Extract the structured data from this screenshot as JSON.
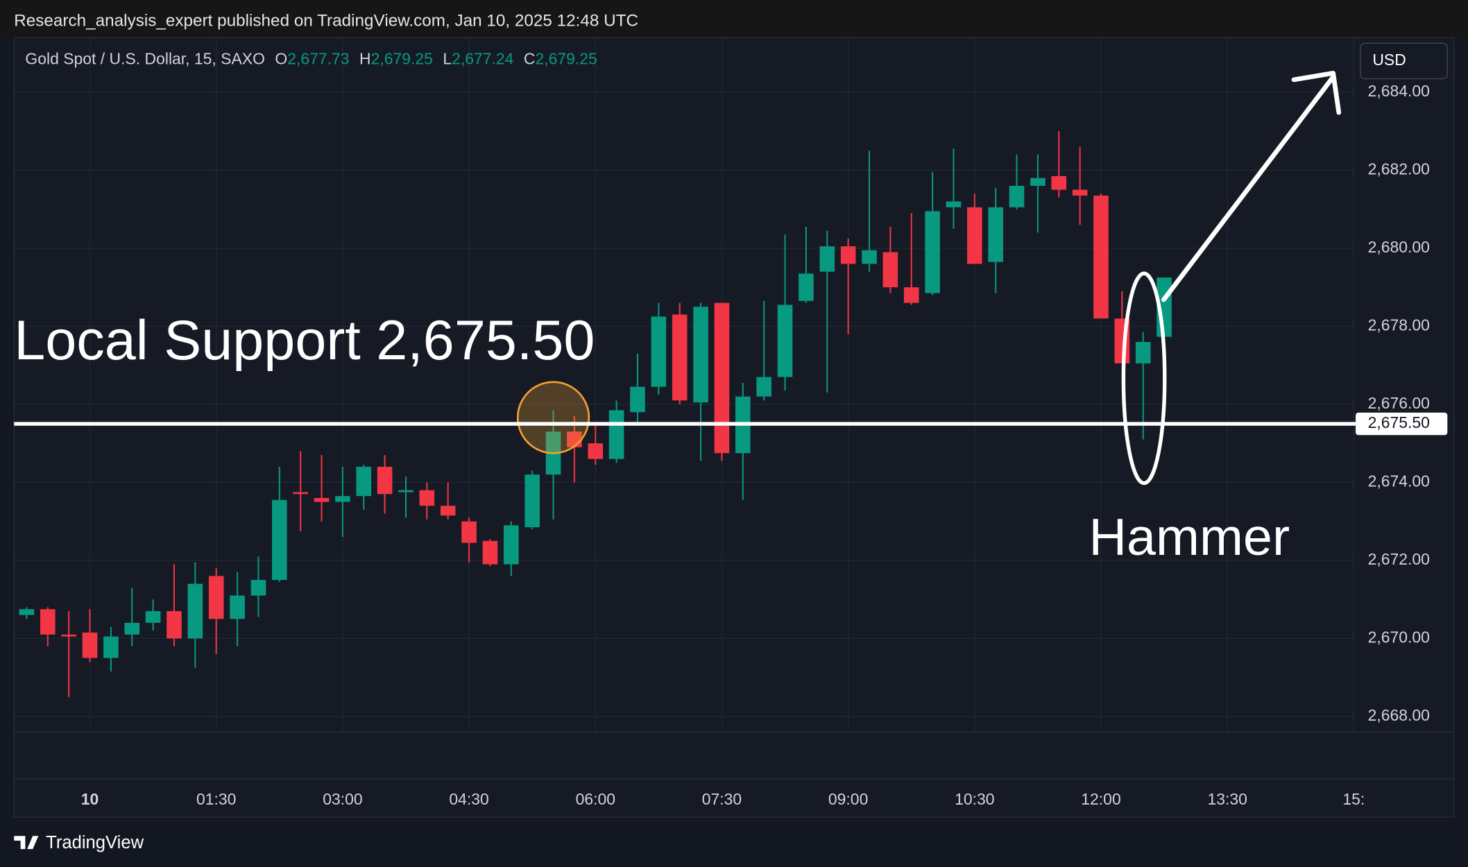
{
  "page": {
    "publisher": "Research_analysis_expert published on TradingView.com, Jan 10, 2025 12:48 UTC",
    "brand": "TradingView",
    "currency": "USD",
    "header": {
      "symbol": "Gold Spot / U.S. Dollar, 15, SAXO",
      "ohlc_letters": [
        "O",
        "H",
        "L",
        "C"
      ],
      "ohlc_values": [
        "2,677.73",
        "2,679.25",
        "2,677.24",
        "2,679.25"
      ]
    }
  },
  "chart_data": {
    "type": "candlestick",
    "up_color": "#089981",
    "down_color": "#f23645",
    "grid": true,
    "x": [
      -45,
      -30,
      -15,
      0,
      15,
      30,
      45,
      60,
      75,
      90,
      105,
      120,
      135,
      150,
      165,
      180,
      195,
      210,
      225,
      240,
      255,
      270,
      285,
      300,
      315,
      330,
      345,
      360,
      375,
      390,
      405,
      420,
      435,
      450,
      465,
      480,
      495,
      510,
      525,
      540,
      555,
      570,
      585,
      600,
      615,
      630,
      645,
      660,
      675,
      690,
      705,
      720,
      735,
      750,
      765
    ],
    "open": [
      2670.6,
      2670.75,
      2670.1,
      2670.15,
      2669.5,
      2670.1,
      2670.4,
      2670.7,
      2670.0,
      2671.6,
      2670.5,
      2671.1,
      2671.5,
      2673.75,
      2673.6,
      2673.5,
      2673.65,
      2674.4,
      2673.75,
      2673.8,
      2673.4,
      2673.0,
      2672.5,
      2671.9,
      2672.85,
      2674.2,
      2675.3,
      2675.0,
      2674.6,
      2675.8,
      2676.45,
      2678.3,
      2676.05,
      2678.6,
      2674.75,
      2676.2,
      2676.7,
      2678.65,
      2679.4,
      2680.05,
      2679.6,
      2679.9,
      2679.0,
      2678.85,
      2681.05,
      2681.05,
      2679.65,
      2681.05,
      2681.6,
      2681.85,
      2681.5,
      2681.35,
      2678.2,
      2677.05,
      2677.73
    ],
    "high": [
      2670.8,
      2670.8,
      2670.7,
      2670.75,
      2670.3,
      2671.3,
      2671.0,
      2671.9,
      2671.95,
      2671.8,
      2671.7,
      2672.1,
      2674.4,
      2674.8,
      2674.7,
      2674.4,
      2674.45,
      2674.7,
      2674.15,
      2674.0,
      2674.0,
      2673.1,
      2672.55,
      2673.0,
      2674.3,
      2675.85,
      2675.7,
      2675.45,
      2676.1,
      2677.3,
      2678.6,
      2678.6,
      2678.6,
      2678.6,
      2676.55,
      2678.65,
      2680.35,
      2680.55,
      2680.45,
      2680.25,
      2682.5,
      2680.55,
      2680.9,
      2681.95,
      2682.55,
      2681.4,
      2681.55,
      2682.4,
      2682.4,
      2683.0,
      2682.6,
      2681.4,
      2678.9,
      2677.85,
      2679.25
    ],
    "low": [
      2670.5,
      2669.8,
      2668.5,
      2669.4,
      2669.15,
      2669.8,
      2670.2,
      2669.8,
      2669.25,
      2669.6,
      2669.8,
      2670.55,
      2671.45,
      2672.75,
      2673.0,
      2672.6,
      2673.3,
      2673.2,
      2673.1,
      2673.05,
      2673.05,
      2671.95,
      2671.85,
      2671.6,
      2672.8,
      2673.05,
      2674.0,
      2674.45,
      2674.5,
      2675.55,
      2676.25,
      2676.0,
      2674.55,
      2674.55,
      2673.55,
      2676.1,
      2676.35,
      2678.6,
      2676.3,
      2677.8,
      2679.4,
      2678.85,
      2678.55,
      2678.8,
      2680.5,
      2679.6,
      2678.85,
      2681.0,
      2680.4,
      2681.3,
      2680.6,
      2678.2,
      2677.05,
      2675.1,
      2677.24
    ],
    "close": [
      2670.75,
      2670.1,
      2670.05,
      2669.5,
      2670.05,
      2670.4,
      2670.7,
      2670.0,
      2671.4,
      2670.5,
      2671.1,
      2671.5,
      2673.55,
      2673.7,
      2673.5,
      2673.65,
      2674.4,
      2673.7,
      2673.8,
      2673.4,
      2673.15,
      2672.45,
      2671.9,
      2672.9,
      2674.2,
      2675.3,
      2674.9,
      2674.6,
      2675.85,
      2676.45,
      2678.25,
      2676.1,
      2678.5,
      2674.75,
      2676.2,
      2676.7,
      2678.55,
      2679.35,
      2680.05,
      2679.6,
      2679.95,
      2679.0,
      2678.6,
      2680.95,
      2681.2,
      2679.6,
      2681.05,
      2681.6,
      2681.8,
      2681.5,
      2681.35,
      2678.2,
      2677.05,
      2677.6,
      2679.25
    ],
    "xlim": [
      -54,
      900
    ],
    "xticks": [
      {
        "value": 0,
        "label": "10"
      },
      {
        "value": 90,
        "label": "01:30"
      },
      {
        "value": 180,
        "label": "03:00"
      },
      {
        "value": 270,
        "label": "04:30"
      },
      {
        "value": 360,
        "label": "06:00"
      },
      {
        "value": 450,
        "label": "07:30"
      },
      {
        "value": 540,
        "label": "09:00"
      },
      {
        "value": 630,
        "label": "10:30"
      },
      {
        "value": 720,
        "label": "12:00"
      },
      {
        "value": 810,
        "label": "13:30"
      },
      {
        "value": 900,
        "label": "15:"
      }
    ],
    "ylim": [
      2667.6,
      2685.4
    ],
    "yticks": [
      {
        "value": 2668,
        "label": "2,668.00"
      },
      {
        "value": 2670,
        "label": "2,670.00"
      },
      {
        "value": 2672,
        "label": "2,672.00"
      },
      {
        "value": 2674,
        "label": "2,674.00"
      },
      {
        "value": 2676,
        "label": "2,676.00"
      },
      {
        "value": 2678,
        "label": "2,678.00"
      },
      {
        "value": 2680,
        "label": "2,680.00"
      },
      {
        "value": 2682,
        "label": "2,682.00"
      },
      {
        "value": 2684,
        "label": "2,684.00"
      }
    ],
    "support": {
      "value": 2675.5,
      "label": "2,675.50"
    },
    "annotations": [
      "Local Support 2,675.50",
      "Hammer"
    ]
  }
}
